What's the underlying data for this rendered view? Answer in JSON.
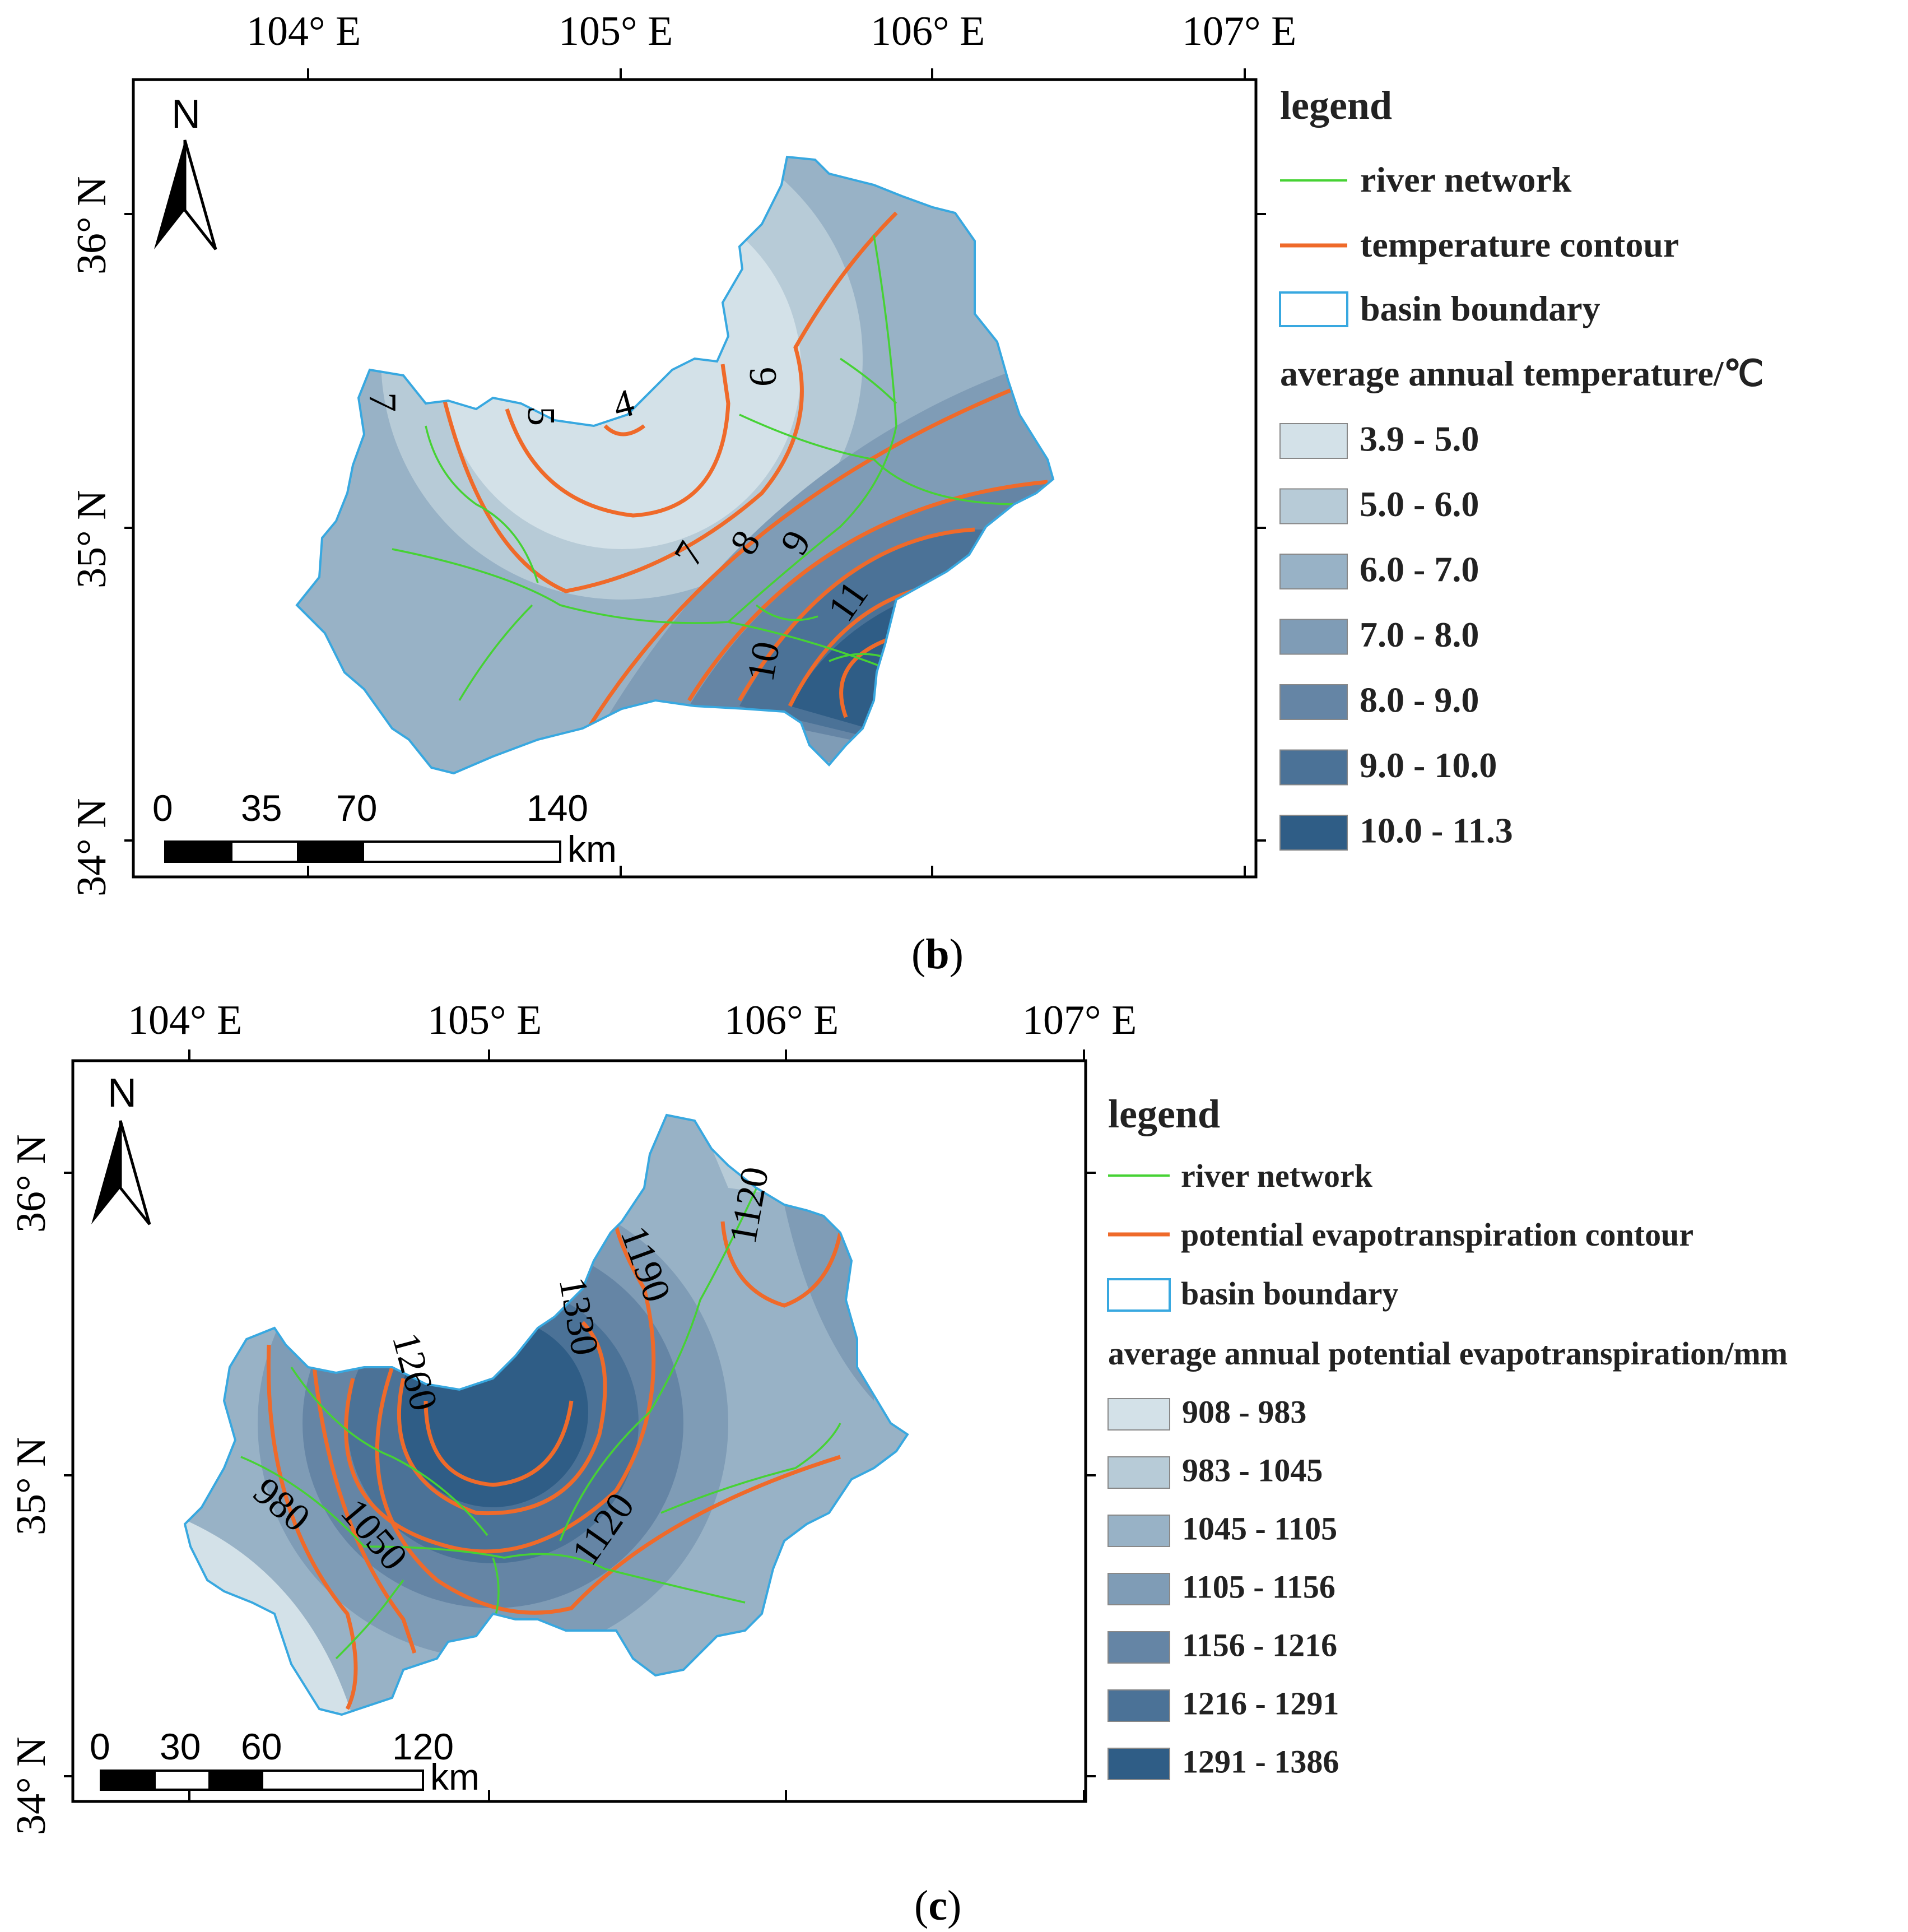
{
  "panel_b": {
    "x_ticks": [
      "104° E",
      "105° E",
      "106° E",
      "107° E"
    ],
    "y_ticks": [
      "36° N",
      "35° N",
      "34° N"
    ],
    "north": "N",
    "scale": {
      "labels": [
        "0",
        "35",
        "70",
        "140"
      ],
      "unit": "km"
    },
    "legend": {
      "title": "legend",
      "river": "river network",
      "contour": "temperature contour",
      "basin": "basin boundary",
      "class_title": "average annual temperature/℃",
      "classes": [
        {
          "label": "3.9 - 5.0",
          "color": "#d3e1e8"
        },
        {
          "label": "5.0 - 6.0",
          "color": "#b7cbd7"
        },
        {
          "label": "6.0 - 7.0",
          "color": "#98b2c6"
        },
        {
          "label": "7.0 - 8.0",
          "color": "#7f9cb6"
        },
        {
          "label": "8.0 - 9.0",
          "color": "#6585a5"
        },
        {
          "label": "9.0 - 10.0",
          "color": "#4b7297"
        },
        {
          "label": "10.0 - 11.3",
          "color": "#2f5d86"
        }
      ]
    },
    "contour_labels": [
      "4",
      "5",
      "6",
      "7",
      "7",
      "8",
      "9",
      "10",
      "11"
    ],
    "caption": {
      "open": "(",
      "letter": "b",
      "close": ")"
    }
  },
  "panel_c": {
    "x_ticks": [
      "104° E",
      "105° E",
      "106° E",
      "107° E"
    ],
    "y_ticks": [
      "36° N",
      "35° N",
      "34° N"
    ],
    "north": "N",
    "scale": {
      "labels": [
        "0",
        "30",
        "60",
        "120"
      ],
      "unit": "km"
    },
    "legend": {
      "title": "legend",
      "river": "river network",
      "contour": "potential evapotranspiration contour",
      "basin": "basin boundary",
      "class_title": "average annual potential evapotranspiration/mm",
      "classes": [
        {
          "label": "908 - 983",
          "color": "#d3e1e8"
        },
        {
          "label": "983 - 1045",
          "color": "#b7cbd7"
        },
        {
          "label": "1045 - 1105",
          "color": "#98b2c6"
        },
        {
          "label": "1105 - 1156",
          "color": "#7f9cb6"
        },
        {
          "label": "1156 - 1216",
          "color": "#6585a5"
        },
        {
          "label": "1216 - 1291",
          "color": "#4b7297"
        },
        {
          "label": "1291 - 1386",
          "color": "#2f5d86"
        }
      ]
    },
    "contour_labels": [
      "980",
      "1050",
      "1120",
      "1190",
      "1260",
      "1330",
      "1120"
    ],
    "caption": {
      "open": "(",
      "letter": "c",
      "close": ")"
    }
  }
}
